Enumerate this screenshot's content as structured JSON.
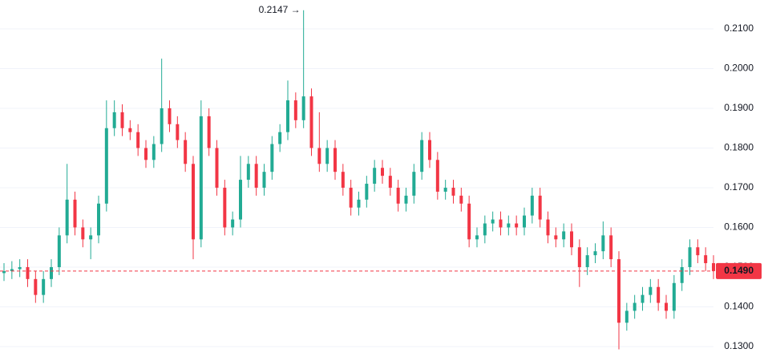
{
  "chart_data": {
    "type": "candlestick",
    "up_color": "#22ab94",
    "down_color": "#f23645",
    "open": [
      0.1485,
      0.149,
      0.1495,
      0.15,
      0.147,
      0.143,
      0.147,
      0.15,
      0.158,
      0.167,
      0.16,
      0.157,
      0.158,
      0.166,
      0.185,
      0.189,
      0.185,
      0.184,
      0.18,
      0.177,
      0.181,
      0.19,
      0.186,
      0.182,
      0.176,
      0.157,
      0.188,
      0.18,
      0.17,
      0.16,
      0.162,
      0.172,
      0.176,
      0.17,
      0.174,
      0.181,
      0.184,
      0.192,
      0.187,
      0.193,
      0.18,
      0.176,
      0.18,
      0.174,
      0.17,
      0.165,
      0.167,
      0.171,
      0.175,
      0.173,
      0.17,
      0.166,
      0.168,
      0.174,
      0.182,
      0.177,
      0.169,
      0.17,
      0.168,
      0.166,
      0.157,
      0.158,
      0.161,
      0.162,
      0.16,
      0.161,
      0.16,
      0.163,
      0.168,
      0.162,
      0.158,
      0.157,
      0.159,
      0.155,
      0.15,
      0.153,
      0.154,
      0.158,
      0.152,
      0.136,
      0.139,
      0.141,
      0.143,
      0.145,
      0.141,
      0.139,
      0.146,
      0.15,
      0.155,
      0.153,
      0.151
    ],
    "high": [
      0.151,
      0.1515,
      0.152,
      0.152,
      0.149,
      0.149,
      0.152,
      0.16,
      0.176,
      0.169,
      0.162,
      0.16,
      0.168,
      0.192,
      0.192,
      0.191,
      0.187,
      0.186,
      0.182,
      0.183,
      0.2025,
      0.192,
      0.188,
      0.184,
      0.178,
      0.192,
      0.19,
      0.182,
      0.172,
      0.164,
      0.178,
      0.178,
      0.178,
      0.176,
      0.183,
      0.186,
      0.197,
      0.194,
      0.2147,
      0.195,
      0.189,
      0.182,
      0.182,
      0.176,
      0.172,
      0.169,
      0.173,
      0.177,
      0.177,
      0.175,
      0.172,
      0.17,
      0.176,
      0.184,
      0.184,
      0.179,
      0.172,
      0.172,
      0.17,
      0.168,
      0.16,
      0.163,
      0.164,
      0.164,
      0.163,
      0.163,
      0.165,
      0.17,
      0.17,
      0.164,
      0.16,
      0.161,
      0.161,
      0.157,
      0.155,
      0.156,
      0.1615,
      0.16,
      0.154,
      0.141,
      0.143,
      0.145,
      0.147,
      0.147,
      0.143,
      0.148,
      0.152,
      0.157,
      0.157,
      0.155,
      0.153
    ],
    "low": [
      0.1465,
      0.147,
      0.1475,
      0.145,
      0.141,
      0.141,
      0.145,
      0.148,
      0.156,
      0.158,
      0.155,
      0.152,
      0.156,
      0.164,
      0.183,
      0.183,
      0.182,
      0.178,
      0.175,
      0.175,
      0.179,
      0.184,
      0.18,
      0.174,
      0.152,
      0.155,
      0.178,
      0.168,
      0.158,
      0.158,
      0.16,
      0.17,
      0.168,
      0.168,
      0.172,
      0.179,
      0.182,
      0.185,
      0.185,
      0.178,
      0.174,
      0.174,
      0.172,
      0.168,
      0.163,
      0.163,
      0.165,
      0.169,
      0.171,
      0.168,
      0.164,
      0.164,
      0.166,
      0.172,
      0.175,
      0.167,
      0.167,
      0.166,
      0.164,
      0.155,
      0.155,
      0.156,
      0.159,
      0.158,
      0.158,
      0.158,
      0.158,
      0.161,
      0.16,
      0.156,
      0.155,
      0.155,
      0.153,
      0.145,
      0.148,
      0.151,
      0.152,
      0.15,
      0.1293,
      0.134,
      0.137,
      0.139,
      0.141,
      0.139,
      0.137,
      0.137,
      0.144,
      0.148,
      0.151,
      0.149,
      0.147
    ],
    "close": [
      0.149,
      0.1495,
      0.15,
      0.147,
      0.143,
      0.147,
      0.15,
      0.158,
      0.167,
      0.16,
      0.157,
      0.158,
      0.166,
      0.185,
      0.189,
      0.185,
      0.184,
      0.18,
      0.177,
      0.181,
      0.19,
      0.186,
      0.182,
      0.176,
      0.157,
      0.188,
      0.18,
      0.17,
      0.16,
      0.162,
      0.172,
      0.176,
      0.17,
      0.174,
      0.181,
      0.184,
      0.192,
      0.187,
      0.193,
      0.18,
      0.176,
      0.18,
      0.174,
      0.17,
      0.165,
      0.167,
      0.171,
      0.175,
      0.173,
      0.17,
      0.166,
      0.168,
      0.174,
      0.182,
      0.177,
      0.169,
      0.17,
      0.168,
      0.166,
      0.157,
      0.158,
      0.161,
      0.162,
      0.16,
      0.161,
      0.16,
      0.163,
      0.168,
      0.162,
      0.158,
      0.157,
      0.159,
      0.155,
      0.15,
      0.153,
      0.154,
      0.158,
      0.152,
      0.136,
      0.139,
      0.141,
      0.143,
      0.145,
      0.141,
      0.139,
      0.146,
      0.15,
      0.155,
      0.153,
      0.151,
      0.149
    ],
    "ylim": [
      0.12737,
      0.21727
    ],
    "yticks": [
      {
        "value": 0.13,
        "label": "0.1300"
      },
      {
        "value": 0.14,
        "label": "0.1400"
      },
      {
        "value": 0.15,
        "label": "0.1500"
      },
      {
        "value": 0.16,
        "label": "0.1600"
      },
      {
        "value": 0.17,
        "label": "0.1700"
      },
      {
        "value": 0.18,
        "label": "0.1800"
      },
      {
        "value": 0.19,
        "label": "0.1900"
      },
      {
        "value": 0.2,
        "label": "0.2000"
      },
      {
        "value": 0.21,
        "label": "0.2100"
      }
    ],
    "grid": true,
    "last_price": {
      "value": 0.149,
      "label": "0.1490"
    },
    "high_annotation": {
      "value": 0.2147,
      "label": "0.2147 →"
    }
  }
}
